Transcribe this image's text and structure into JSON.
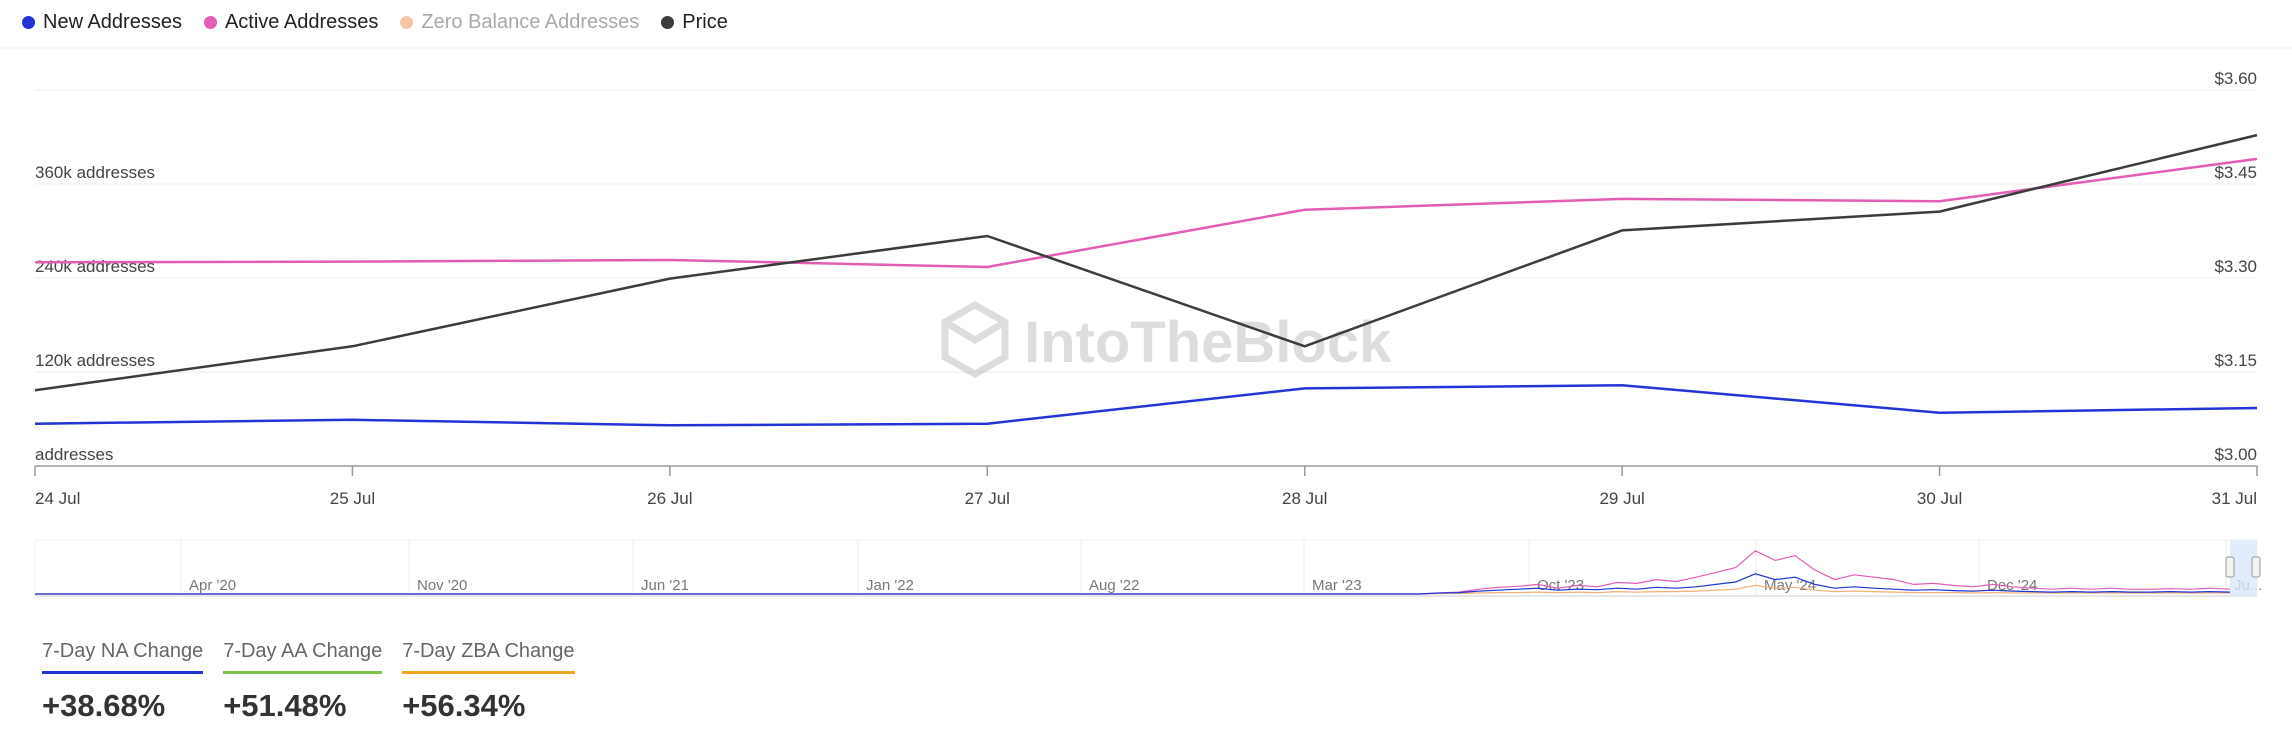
{
  "legend": [
    {
      "name": "New Addresses",
      "color": "#2234d6",
      "enabled": true
    },
    {
      "name": "Active Addresses",
      "color": "#e35db5",
      "enabled": true
    },
    {
      "name": "Zero Balance Addresses",
      "color": "#f5c6a5",
      "enabled": false
    },
    {
      "name": "Price",
      "color": "#3c3c3c",
      "enabled": true
    }
  ],
  "chart_data": {
    "type": "line",
    "x": [
      "24 Jul",
      "25 Jul",
      "26 Jul",
      "27 Jul",
      "28 Jul",
      "29 Jul",
      "30 Jul",
      "31 Jul"
    ],
    "y_left": {
      "ticks": [
        0,
        120000,
        240000,
        360000
      ],
      "tick_labels": [
        "addresses",
        "120k addresses",
        "240k addresses",
        "360k addresses"
      ],
      "range": [
        0,
        480000
      ]
    },
    "y_right": {
      "ticks": [
        3.0,
        3.15,
        3.3,
        3.45,
        3.6
      ],
      "tick_labels": [
        "$3.00",
        "$3.15",
        "$3.30",
        "$3.45",
        "$3.60"
      ],
      "range": [
        3.0,
        3.6
      ]
    },
    "series": [
      {
        "name": "New Addresses",
        "axis": "left",
        "color": "#2234d6",
        "values": [
          54000,
          59000,
          52000,
          54000,
          99000,
          103000,
          68000,
          74000
        ]
      },
      {
        "name": "Active Addresses",
        "axis": "left",
        "color": "#e35db5",
        "values": [
          260000,
          261000,
          263000,
          254000,
          327000,
          341000,
          338000,
          392000
        ]
      },
      {
        "name": "Price",
        "axis": "right",
        "color": "#3c3c3c",
        "values": [
          3.121,
          3.191,
          3.299,
          3.367,
          3.191,
          3.376,
          3.406,
          3.528
        ]
      }
    ],
    "grid": true,
    "watermark": "IntoTheBlock",
    "navigator": {
      "labels": [
        "Apr '20",
        "Nov '20",
        "Jun '21",
        "Jan '22",
        "Aug '22",
        "Mar '23",
        "Oct '23",
        "May '24",
        "Dec '24",
        "Ju..."
      ],
      "series_shape": {
        "active": [
          0,
          0,
          0,
          0,
          0,
          0,
          0,
          0,
          0,
          0,
          0,
          0,
          0,
          0,
          0,
          0,
          0,
          0,
          0,
          0,
          0,
          0,
          0,
          0,
          0,
          0,
          0,
          0,
          0,
          0,
          0,
          0,
          0,
          0,
          0,
          0,
          0,
          0,
          0,
          0,
          0,
          0,
          0,
          0,
          0,
          0,
          0,
          0,
          0,
          0,
          0,
          0,
          0,
          0,
          0,
          0,
          0,
          0,
          0,
          0,
          0,
          0,
          0,
          0,
          0,
          0,
          0,
          0,
          0,
          0,
          0,
          0.02,
          0.04,
          0.1,
          0.14,
          0.16,
          0.2,
          0.12,
          0.18,
          0.15,
          0.24,
          0.22,
          0.3,
          0.26,
          0.35,
          0.45,
          0.55,
          0.9,
          0.7,
          0.8,
          0.5,
          0.3,
          0.4,
          0.35,
          0.3,
          0.2,
          0.22,
          0.18,
          0.15,
          0.2,
          0.15,
          0.12,
          0.1,
          0.12,
          0.1,
          0.12,
          0.1,
          0.1,
          0.11,
          0.1,
          0.12,
          0.1
        ],
        "new": [
          0,
          0,
          0,
          0,
          0,
          0,
          0,
          0,
          0,
          0,
          0,
          0,
          0,
          0,
          0,
          0,
          0,
          0,
          0,
          0,
          0,
          0,
          0,
          0,
          0,
          0,
          0,
          0,
          0,
          0,
          0,
          0,
          0,
          0,
          0,
          0,
          0,
          0,
          0,
          0,
          0,
          0,
          0,
          0,
          0,
          0,
          0,
          0,
          0,
          0,
          0,
          0,
          0,
          0,
          0,
          0,
          0,
          0,
          0,
          0,
          0,
          0,
          0,
          0,
          0,
          0,
          0,
          0,
          0,
          0,
          0,
          0.02,
          0.03,
          0.06,
          0.08,
          0.1,
          0.12,
          0.08,
          0.1,
          0.09,
          0.12,
          0.1,
          0.14,
          0.12,
          0.15,
          0.2,
          0.25,
          0.42,
          0.3,
          0.35,
          0.2,
          0.12,
          0.15,
          0.12,
          0.1,
          0.08,
          0.09,
          0.07,
          0.06,
          0.08,
          0.06,
          0.05,
          0.04,
          0.05,
          0.04,
          0.05,
          0.04,
          0.04,
          0.05,
          0.04,
          0.05,
          0.04
        ],
        "zero": [
          0,
          0,
          0,
          0,
          0,
          0,
          0,
          0,
          0,
          0,
          0,
          0,
          0,
          0,
          0,
          0,
          0,
          0,
          0,
          0,
          0,
          0,
          0,
          0,
          0,
          0,
          0,
          0,
          0,
          0,
          0,
          0,
          0,
          0,
          0,
          0,
          0,
          0,
          0,
          0,
          0,
          0,
          0,
          0,
          0,
          0,
          0,
          0,
          0,
          0,
          0,
          0,
          0,
          0,
          0,
          0,
          0,
          0,
          0,
          0,
          0,
          0,
          0,
          0,
          0,
          0,
          0,
          0,
          0,
          0,
          0,
          0.01,
          0.01,
          0.02,
          0.03,
          0.03,
          0.04,
          0.03,
          0.04,
          0.03,
          0.05,
          0.04,
          0.05,
          0.05,
          0.06,
          0.08,
          0.1,
          0.18,
          0.12,
          0.14,
          0.08,
          0.05,
          0.06,
          0.05,
          0.04,
          0.03,
          0.03,
          0.03,
          0.02,
          0.03,
          0.02,
          0.02,
          0.02,
          0.02,
          0.02,
          0.02,
          0.02,
          0.02,
          0.02,
          0.02,
          0.02,
          0.02
        ]
      }
    }
  },
  "stats": [
    {
      "label": "7-Day NA Change",
      "value": "+38.68%",
      "color": "#2234d6"
    },
    {
      "label": "7-Day AA Change",
      "value": "+51.48%",
      "color": "#7cc24b"
    },
    {
      "label": "7-Day ZBA Change",
      "value": "+56.34%",
      "color": "#f0a623"
    }
  ]
}
